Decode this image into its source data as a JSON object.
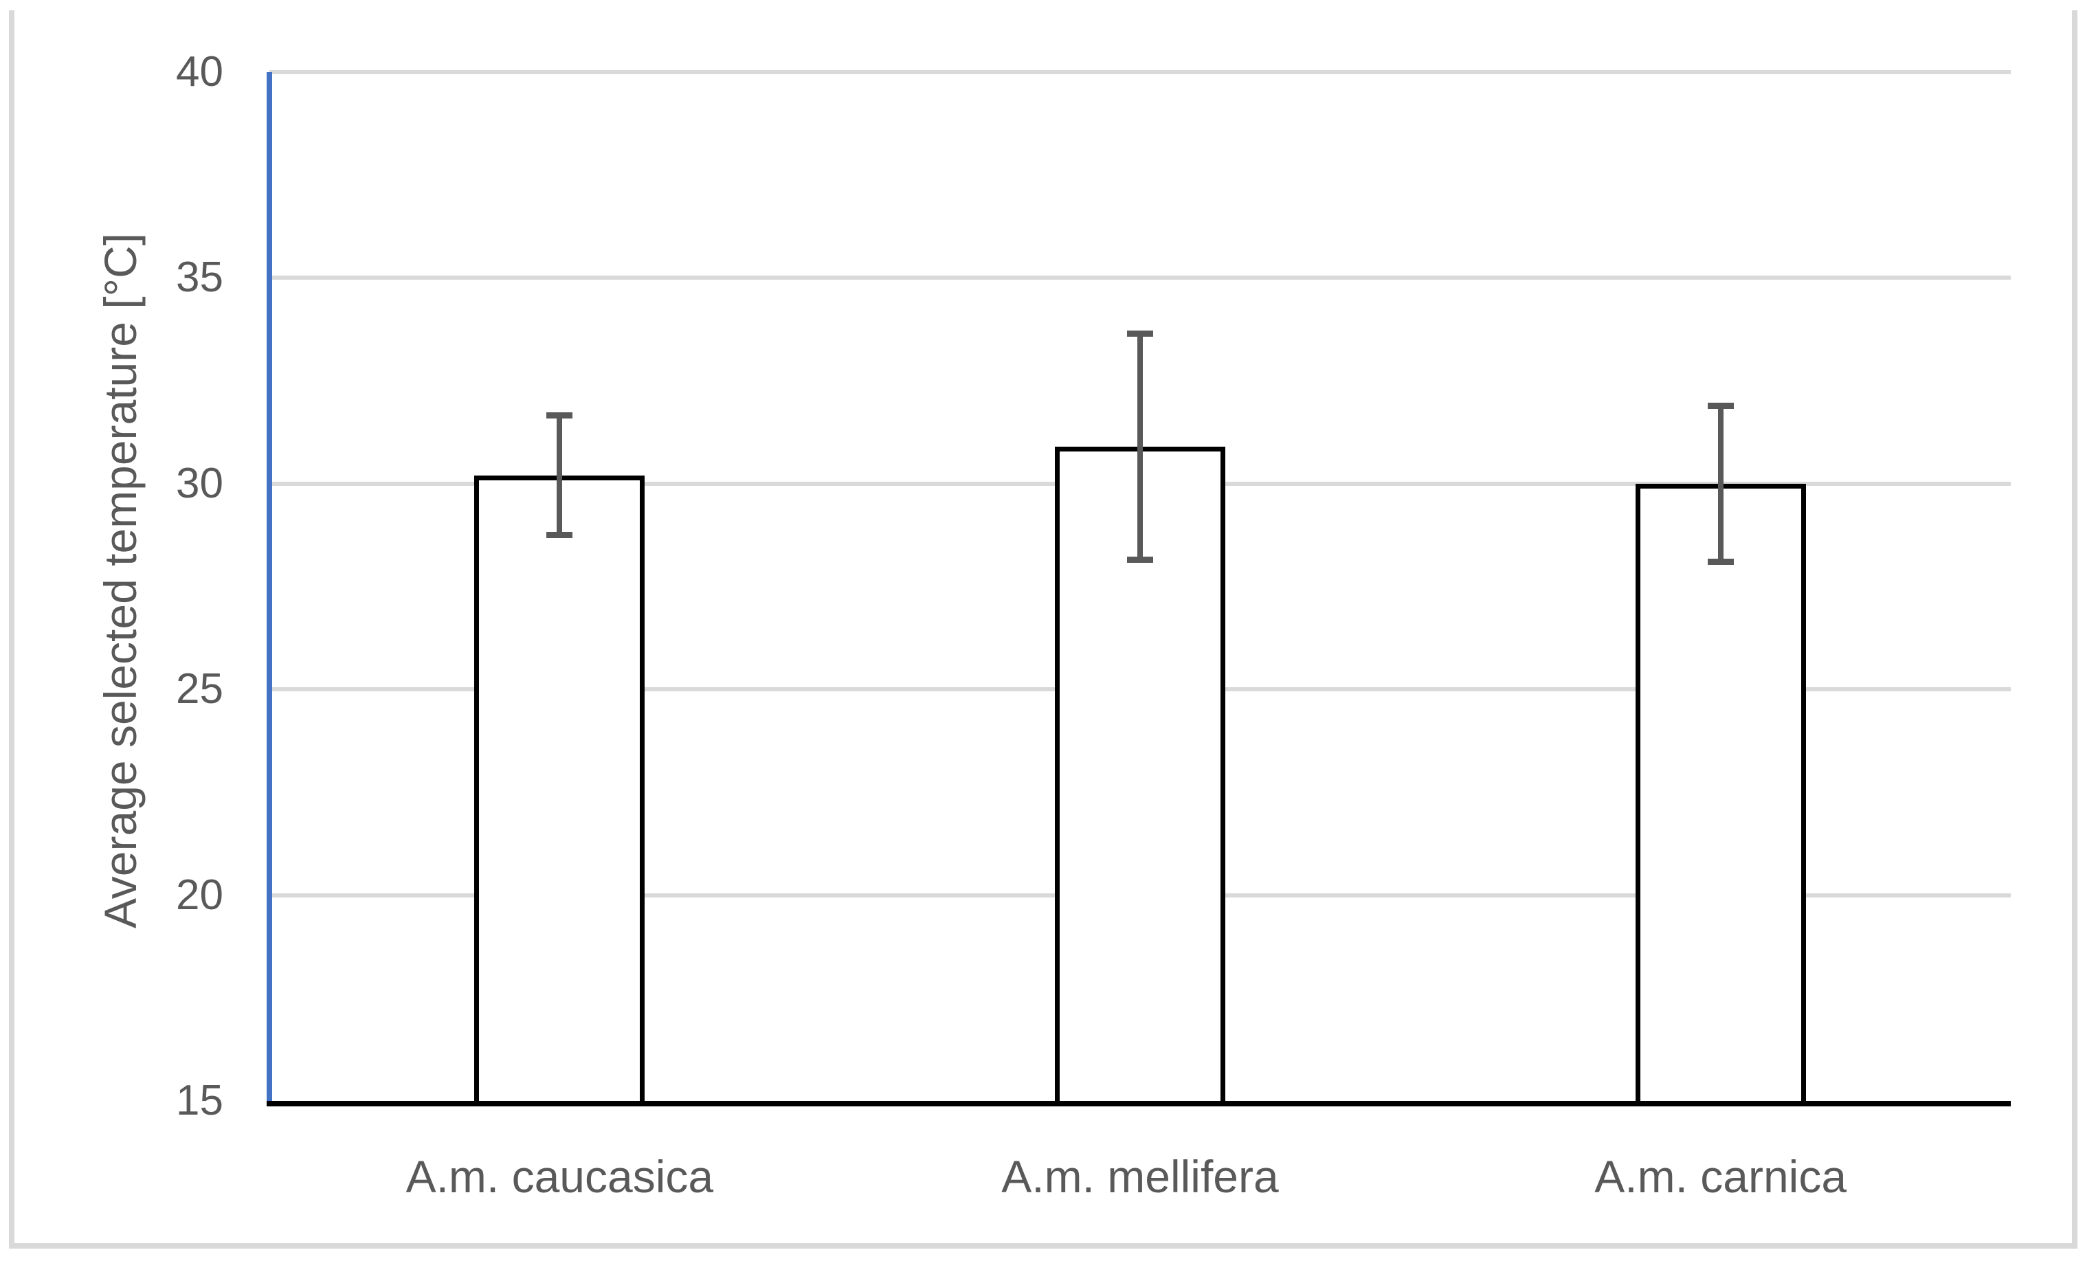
{
  "figure": {
    "background": "#FFFFFF",
    "border_color": "#D9D9D9"
  },
  "chart_data": {
    "type": "bar",
    "title": "",
    "categories": [
      "A.m. caucasica",
      "A.m. mellifera",
      "A.m. carnica"
    ],
    "values": [
      30.2,
      30.9,
      30.0
    ],
    "error_bars": {
      "symmetric": true,
      "plus": [
        1.45,
        2.75,
        1.9
      ],
      "minus": [
        1.45,
        2.75,
        1.9
      ]
    },
    "xlabel": "",
    "ylabel": "Average selected temperature [°C]",
    "ylim": [
      15,
      40
    ],
    "yticks": [
      15,
      20,
      25,
      30,
      35,
      40
    ],
    "grid": "horizontal",
    "legend": "none",
    "colors": {
      "bar_fill": "#FFFFFF",
      "bar_border": "#000000",
      "error_bar": "#595959",
      "y_axis_line": "#4472C4",
      "x_axis_line": "#000000",
      "gridline": "#D9D9D9",
      "tick_text": "#595959",
      "frame_border": "#D9D9D9"
    }
  }
}
